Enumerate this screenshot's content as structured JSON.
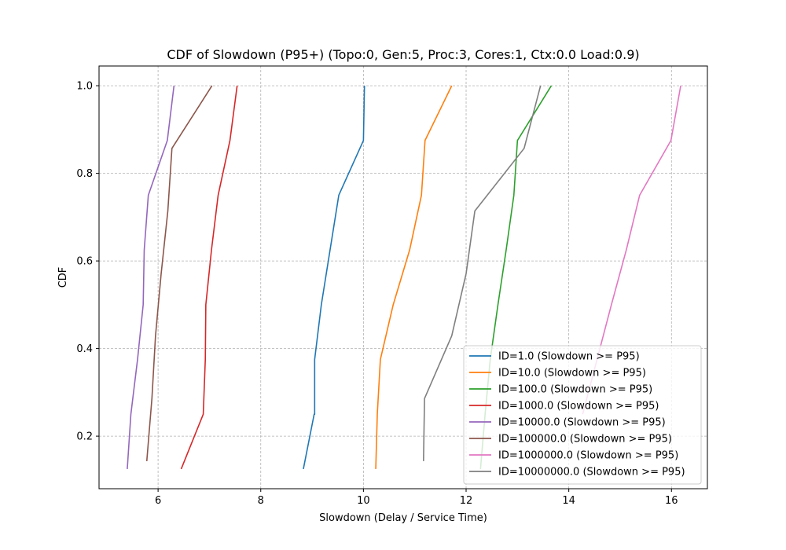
{
  "chart_data": {
    "type": "line",
    "title": "CDF of Slowdown (P95+) (Topo:0, Gen:5, Proc:3, Cores:1, Ctx:0.0 Load:0.9)",
    "xlabel": "Slowdown (Delay / Service Time)",
    "ylabel": "CDF",
    "xlim": [
      4.85,
      16.7
    ],
    "ylim": [
      0.08,
      1.045
    ],
    "xticks": [
      6,
      8,
      10,
      12,
      14,
      16
    ],
    "xtick_labels": [
      "6",
      "8",
      "10",
      "12",
      "14",
      "16"
    ],
    "yticks": [
      0.2,
      0.4,
      0.6,
      0.8,
      1.0
    ],
    "ytick_labels": [
      "0.2",
      "0.4",
      "0.6",
      "0.8",
      "1.0"
    ],
    "grid": true,
    "legend_position": "bottom-right",
    "series": [
      {
        "name": "ID=1.0 (Slowdown >= P95)",
        "color": "#1f77b4",
        "x": [
          8.83,
          9.04,
          9.05,
          9.05,
          9.05,
          9.18,
          9.35,
          9.52,
          10.0,
          10.02
        ],
        "y": [
          0.125,
          0.25,
          0.25,
          0.375,
          0.375,
          0.5,
          0.625,
          0.75,
          0.875,
          1.0
        ]
      },
      {
        "name": "ID=10.0 (Slowdown >= P95)",
        "color": "#ff7f0e",
        "x": [
          10.24,
          10.27,
          10.33,
          10.58,
          10.9,
          11.13,
          11.2,
          11.72
        ],
        "y": [
          0.125,
          0.25,
          0.375,
          0.5,
          0.625,
          0.75,
          0.875,
          1.0
        ]
      },
      {
        "name": "ID=100.0 (Slowdown >= P95)",
        "color": "#2ca02c",
        "x": [
          12.28,
          12.37,
          12.47,
          12.62,
          12.78,
          12.93,
          13.0,
          13.66
        ],
        "y": [
          0.125,
          0.25,
          0.375,
          0.5,
          0.625,
          0.75,
          0.875,
          1.0
        ]
      },
      {
        "name": "ID=1000.0 (Slowdown >= P95)",
        "color": "#d62728",
        "x": [
          6.45,
          6.88,
          6.92,
          6.93,
          7.04,
          7.17,
          7.4,
          7.54
        ],
        "y": [
          0.125,
          0.25,
          0.375,
          0.5,
          0.625,
          0.75,
          0.875,
          1.0
        ]
      },
      {
        "name": "ID=10000.0 (Slowdown >= P95)",
        "color": "#9467bd",
        "x": [
          5.4,
          5.47,
          5.6,
          5.71,
          5.73,
          5.81,
          6.18,
          6.31
        ],
        "y": [
          0.125,
          0.25,
          0.375,
          0.5,
          0.625,
          0.75,
          0.875,
          1.0
        ]
      },
      {
        "name": "ID=100000.0 (Slowdown >= P95)",
        "color": "#8c564b",
        "x": [
          5.78,
          5.88,
          5.95,
          6.06,
          6.19,
          6.27,
          7.05
        ],
        "y": [
          0.143,
          0.286,
          0.429,
          0.571,
          0.714,
          0.857,
          1.0
        ]
      },
      {
        "name": "ID=1000000.0 (Slowdown >= P95)",
        "color": "#e377c2",
        "x": [
          14.27,
          14.55,
          14.83,
          15.12,
          15.38,
          15.99,
          16.18
        ],
        "y": [
          0.25,
          0.375,
          0.5,
          0.625,
          0.75,
          0.875,
          1.0
        ]
      },
      {
        "name": "ID=10000000.0 (Slowdown >= P95)",
        "color": "#7f7f7f",
        "x": [
          11.17,
          11.19,
          11.72,
          12.0,
          12.17,
          13.13,
          13.45
        ],
        "y": [
          0.143,
          0.286,
          0.429,
          0.571,
          0.714,
          0.857,
          1.0
        ]
      }
    ]
  }
}
